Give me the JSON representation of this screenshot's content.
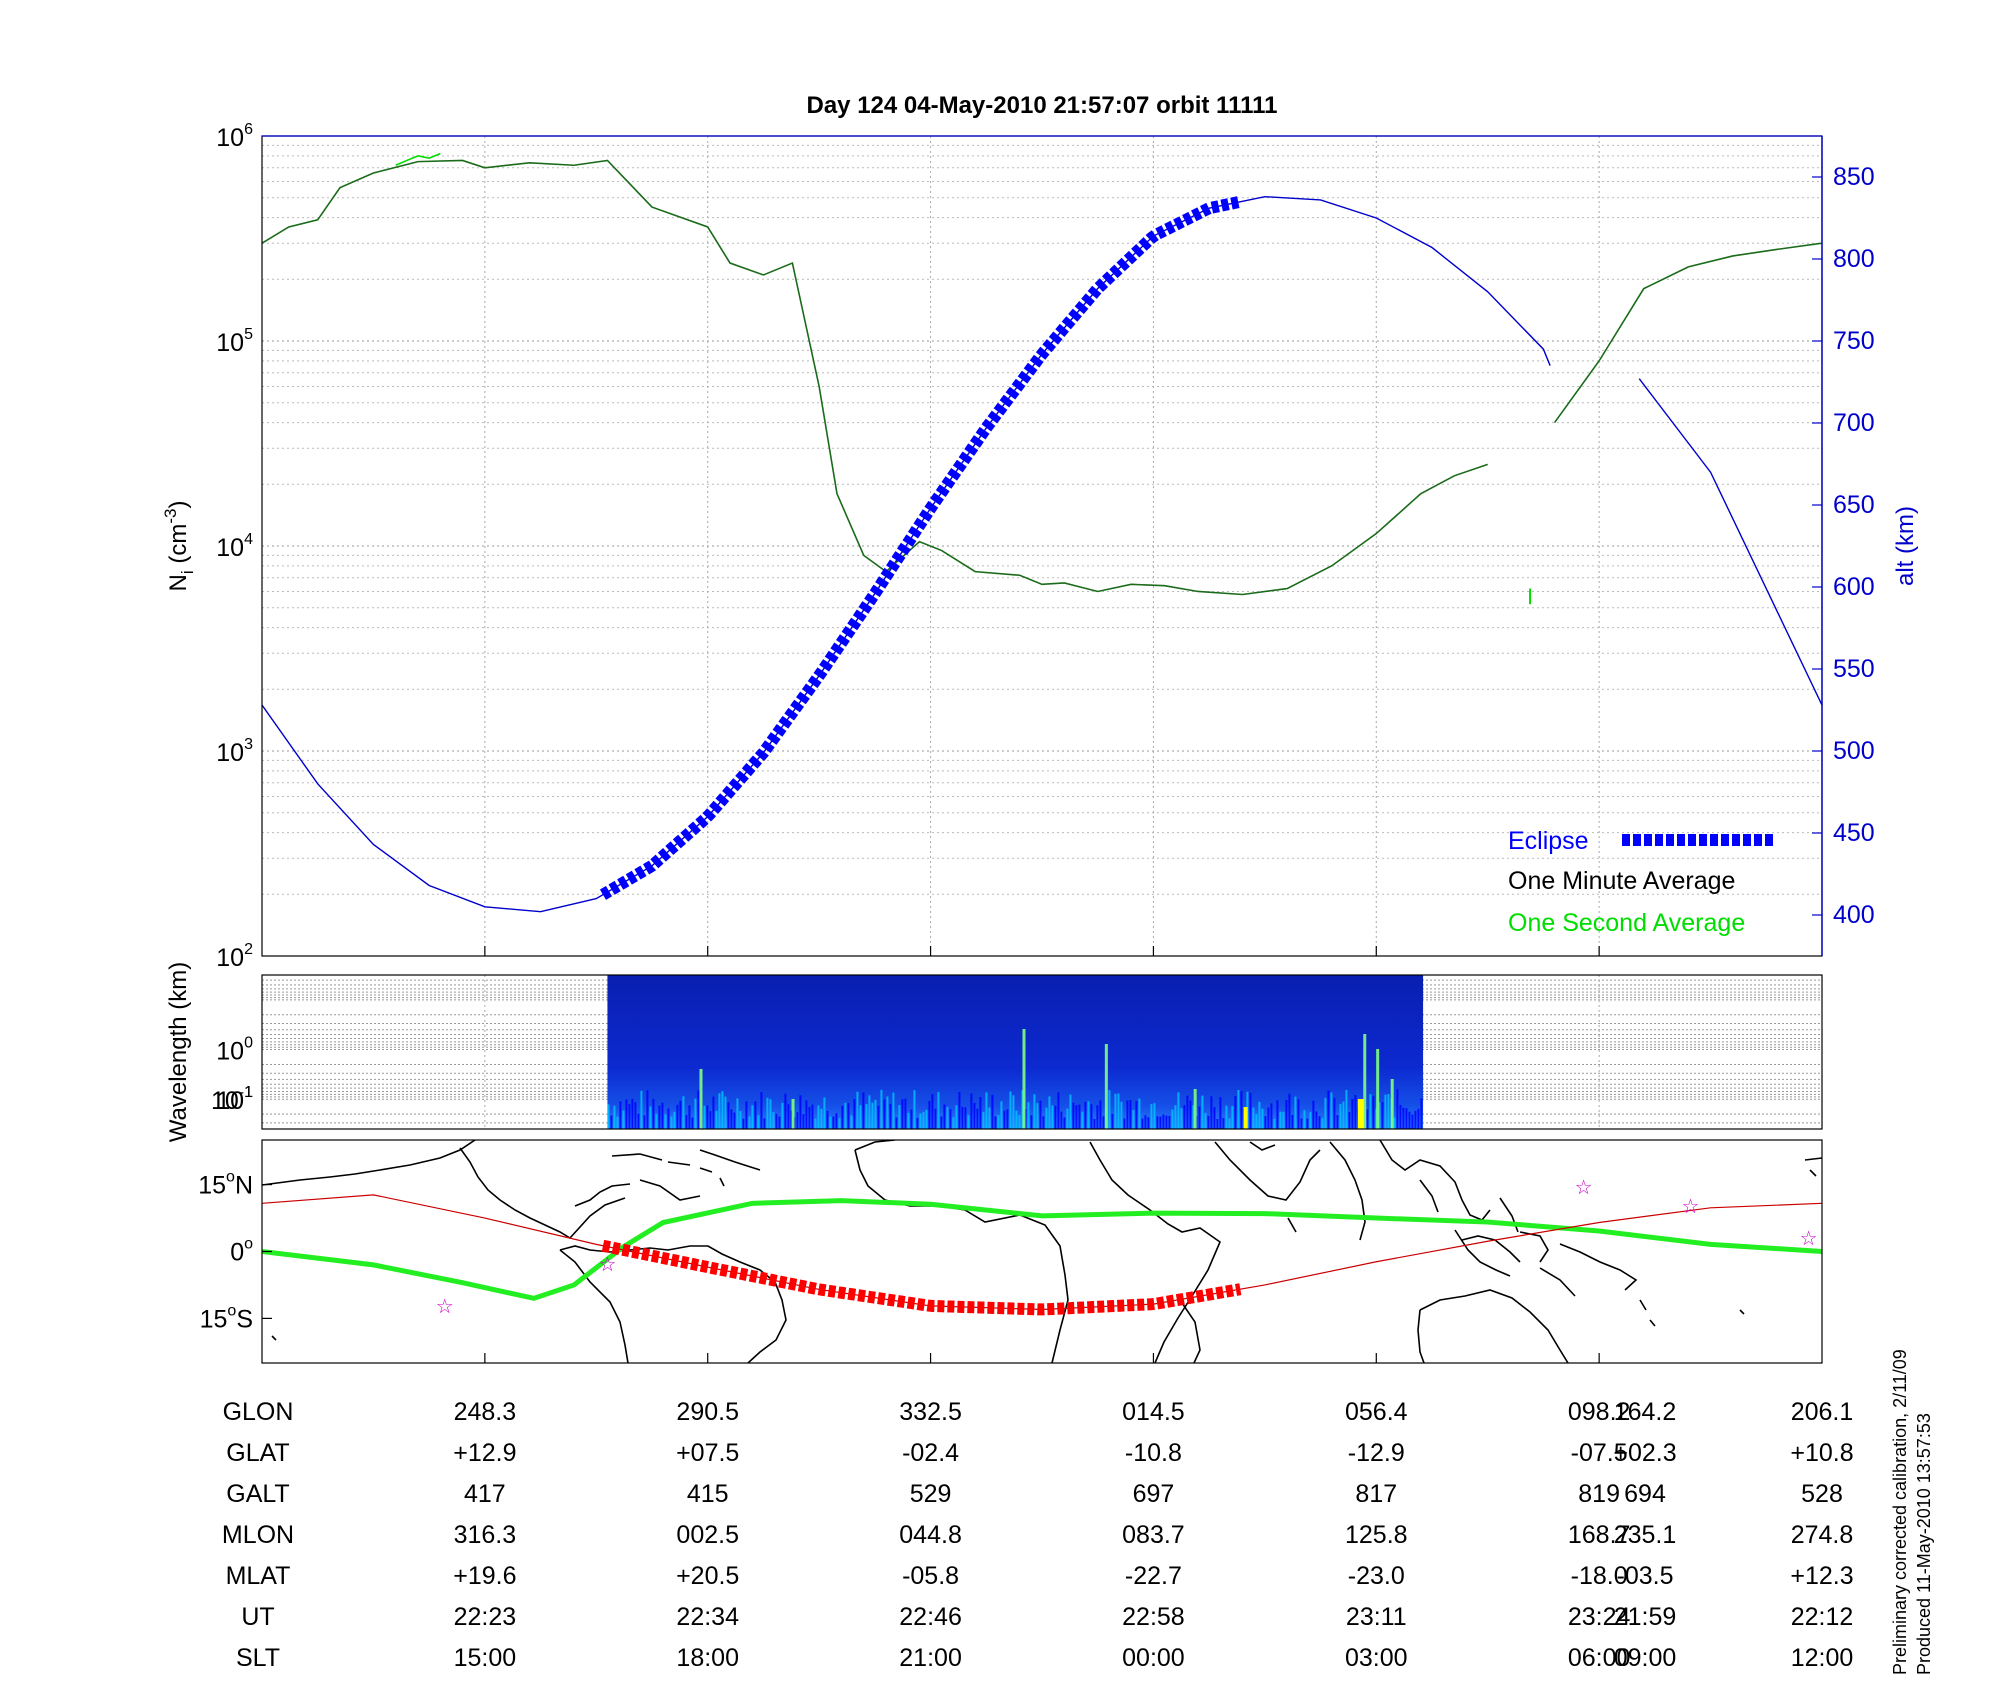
{
  "title": "Day 124  04-May-2010 21:57:07   orbit 11111",
  "chart_data": [
    {
      "type": "line",
      "panel": "density-altitude",
      "ylabel_left": {
        "base": "N",
        "sub": "i",
        "unit_pre": " (cm",
        "unit_sup": "-3",
        "unit_post": ")"
      },
      "ylabel_right": "alt (km)",
      "y_left_scale": "log",
      "y_left_range": [
        100,
        1000000
      ],
      "y_left_ticks": [
        {
          "base": "10",
          "exp": "2"
        },
        {
          "base": "10",
          "exp": "3"
        },
        {
          "base": "10",
          "exp": "4"
        },
        {
          "base": "10",
          "exp": "5"
        },
        {
          "base": "10",
          "exp": "6"
        }
      ],
      "y_right_range": [
        375,
        875
      ],
      "y_right_ticks": [
        "400",
        "450",
        "500",
        "550",
        "600",
        "650",
        "700",
        "750",
        "800",
        "850"
      ],
      "grid": true,
      "legend": {
        "placement": "bottom-right",
        "entries": [
          {
            "label": "Eclipse",
            "color": "#0000ff",
            "style": "thick-dashed"
          },
          {
            "label": "One Minute Average",
            "color": "#000000",
            "style": "line"
          },
          {
            "label": "One Second Average",
            "color": "#00dd00",
            "style": "line"
          }
        ]
      },
      "colors": {
        "density": "#1a6b1a",
        "density_second": "#00dd00",
        "altitude": "#0000cc",
        "eclipse": "#0000ff"
      },
      "series": [
        {
          "name": "One Minute Average",
          "x_index": [
            0,
            0.12,
            0.25,
            0.35,
            0.5,
            0.7,
            0.9,
            1.0,
            1.2,
            1.4,
            1.55,
            1.75,
            2.0,
            2.1,
            2.25,
            2.38,
            2.5,
            2.58,
            2.7,
            2.8,
            2.95,
            3.05,
            3.2,
            3.4,
            3.5,
            3.6,
            3.75,
            3.9,
            4.05,
            4.2,
            4.4,
            4.6,
            4.8,
            5.0,
            5.2,
            5.35,
            5.5,
            5.6,
            5.8,
            6.0,
            6.2,
            6.4,
            6.6,
            6.8,
            7.0
          ],
          "values": [
            300000,
            360000,
            390000,
            560000,
            660000,
            750000,
            760000,
            700000,
            740000,
            720000,
            760000,
            450000,
            360000,
            240000,
            210000,
            240000,
            60000,
            18000,
            9000,
            7500,
            10500,
            9500,
            7500,
            7200,
            6500,
            6600,
            6000,
            6500,
            6400,
            6000,
            5800,
            6200,
            8000,
            11500,
            18000,
            22000,
            25000,
            26000,
            40000,
            80000,
            180000,
            230000,
            260000,
            280000,
            300000
          ],
          "segments": [
            [
              0,
              25
            ],
            [
              25,
              43
            ]
          ],
          "gap_x_index": [
            5.78,
            6.0
          ]
        },
        {
          "name": "One Second Average",
          "x_index": [
            0.6,
            0.65,
            0.7,
            0.75,
            0.8
          ],
          "values": [
            720000,
            760000,
            800000,
            780000,
            820000
          ],
          "note_point": {
            "x_index": 5.69,
            "values": [
              5200,
              6200
            ]
          }
        },
        {
          "name": "alt (km)",
          "x_index": [
            0,
            0.25,
            0.5,
            0.75,
            1.0,
            1.25,
            1.5,
            1.75,
            2.0,
            2.25,
            2.5,
            2.75,
            3.0,
            3.25,
            3.5,
            3.75,
            4.0,
            4.25,
            4.5,
            4.75,
            5.0,
            5.25,
            5.5,
            5.75,
            5.78
          ],
          "values": [
            528,
            480,
            443,
            418,
            405,
            402,
            410,
            430,
            460,
            499,
            546,
            596,
            648,
            697,
            742,
            782,
            814,
            831,
            838,
            836,
            825,
            807,
            780,
            745,
            735
          ],
          "after_gap_x_index": [
            6.18,
            6.5,
            7.0
          ],
          "after_gap_values": [
            727,
            670,
            528
          ]
        },
        {
          "name": "Eclipse",
          "x_index_range": [
            1.53,
            4.39
          ],
          "on": "alt (km)"
        }
      ]
    },
    {
      "type": "heatmap",
      "panel": "spectrogram",
      "ylabel": "Wavelength (km)",
      "y_ticks": [
        {
          "base": "10",
          "exp": "-1"
        },
        {
          "base": "10",
          "exp": "0"
        },
        {
          "base": "10",
          "exp": "1"
        }
      ],
      "data_x_index_range": [
        1.55,
        5.21
      ],
      "colormap": [
        "#00008b",
        "#0000ff",
        "#00bfff",
        "#7fff7f",
        "#ffff00"
      ]
    },
    {
      "type": "line",
      "panel": "ground-track-map",
      "y_ticks": [
        {
          "value": "15",
          "deg": "o",
          "hemi": "N"
        },
        {
          "value": "0",
          "deg": "o",
          "hemi": ""
        },
        {
          "value": "15",
          "deg": "o",
          "hemi": "S"
        }
      ],
      "y_range": [
        -25,
        25
      ],
      "colors": {
        "orbit": "#cc0000",
        "magnetic_equator": "#22ee22",
        "eclipse": "#ff0000",
        "stars": "#cc00cc",
        "coast": "#000000"
      },
      "series": [
        {
          "name": "Magnetic equator",
          "x_index": [
            0,
            0.5,
            0.9,
            1.22,
            1.4,
            1.62,
            1.8,
            2.2,
            2.6,
            3.0,
            3.5,
            4.0,
            4.5,
            5.0,
            5.5,
            6.0,
            6.5,
            7.0
          ],
          "lat": [
            0,
            -3,
            -7,
            -10.5,
            -7.5,
            1,
            6.5,
            10.8,
            11.4,
            10.6,
            8,
            8.6,
            8.5,
            7.5,
            6.6,
            4.6,
            1.6,
            0
          ]
        },
        {
          "name": "Orbit track",
          "x_index": [
            0,
            0.5,
            1.0,
            1.5,
            2.0,
            2.5,
            3.0,
            3.5,
            4.0,
            4.5,
            5.0,
            5.5,
            6.0,
            6.5,
            7.0
          ],
          "lat": [
            10.8,
            12.7,
            7.5,
            1.6,
            -3.5,
            -8.5,
            -12.2,
            -13.0,
            -11.8,
            -7.5,
            -2.3,
            2.3,
            6.5,
            9.8,
            10.8
          ]
        },
        {
          "name": "Eclipse",
          "x_index_range": [
            1.53,
            4.39
          ]
        }
      ],
      "markers": [
        {
          "x_index": 0.82,
          "lat": -12.2
        },
        {
          "x_index": 1.55,
          "lat": -2.8
        },
        {
          "x_index": 5.93,
          "lat": 14.5
        },
        {
          "x_index": 6.41,
          "lat": 10.2
        },
        {
          "x_index": 6.94,
          "lat": 3.0
        }
      ]
    },
    {
      "type": "table",
      "panel": "orbit-parameters",
      "rows": [
        {
          "label": "GLON",
          "values": [
            "248.3",
            "290.5",
            "332.5",
            "014.5",
            "056.4",
            "098.2",
            "164.2",
            "206.1"
          ]
        },
        {
          "label": "GLAT",
          "values": [
            "+12.9",
            "+07.5",
            "-02.4",
            "-10.8",
            "-12.9",
            "-07.5",
            "+02.3",
            "+10.8"
          ]
        },
        {
          "label": "GALT",
          "values": [
            "417",
            "415",
            "529",
            "697",
            "817",
            "819",
            "694",
            "528"
          ]
        },
        {
          "label": "MLON",
          "values": [
            "316.3",
            "002.5",
            "044.8",
            "083.7",
            "125.8",
            "168.7",
            "235.1",
            "274.8"
          ]
        },
        {
          "label": "MLAT",
          "values": [
            "+19.6",
            "+20.5",
            "-05.8",
            "-22.7",
            "-23.0",
            "-18.0",
            "-03.5",
            "+12.3"
          ]
        },
        {
          "label": "UT",
          "values": [
            "22:23",
            "22:34",
            "22:46",
            "22:58",
            "23:11",
            "23:24",
            "21:59",
            "22:12"
          ]
        },
        {
          "label": "SLT",
          "values": [
            "15:00",
            "18:00",
            "21:00",
            "00:00",
            "03:00",
            "06:00",
            "09:00",
            "12:00"
          ]
        }
      ],
      "column_x_index": [
        1,
        2,
        3,
        4,
        5,
        6,
        6.5,
        7
      ]
    }
  ],
  "footnote": {
    "line1": "Preliminary corrected calibration, 2/11/09",
    "line2": "Produced 11-May-2010 13:57:53"
  }
}
